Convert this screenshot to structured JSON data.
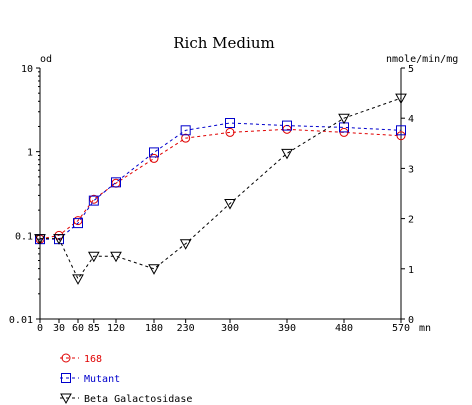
{
  "chart_data": {
    "type": "line",
    "title": "Rich Medium",
    "y_left_label": "od",
    "y_right_label": "nmole/min/mg",
    "x_unit_label": "mn",
    "x_ticks": [
      0,
      30,
      60,
      85,
      120,
      180,
      230,
      300,
      390,
      480,
      570
    ],
    "x_range": [
      0,
      570
    ],
    "y_left_scale": "log",
    "y_left_range": [
      0.01,
      10
    ],
    "y_left_ticks": [
      {
        "value": 10,
        "label": "10"
      },
      {
        "value": 1,
        "label": "1"
      },
      {
        "value": 0.1,
        "label": "0.1"
      },
      {
        "value": 0.01,
        "label": "0.01"
      }
    ],
    "y_right_range": [
      0,
      5
    ],
    "y_right_ticks": [
      0,
      1,
      2,
      3,
      4,
      5
    ],
    "grid": false,
    "legend_position": "bottom-left",
    "series": [
      {
        "name": "168",
        "axis": "left",
        "marker": "circle",
        "color": "#e00000",
        "x": [
          0,
          30,
          60,
          85,
          120,
          180,
          230,
          300,
          390,
          480,
          570
        ],
        "y": [
          0.09,
          0.1,
          0.15,
          0.27,
          0.42,
          0.83,
          1.45,
          1.7,
          1.85,
          1.7,
          1.55
        ]
      },
      {
        "name": "Mutant",
        "axis": "left",
        "marker": "square",
        "color": "#0000cc",
        "x": [
          0,
          30,
          60,
          85,
          120,
          180,
          230,
          300,
          390,
          480,
          570
        ],
        "y": [
          0.09,
          0.09,
          0.14,
          0.26,
          0.43,
          0.98,
          1.8,
          2.2,
          2.05,
          1.95,
          1.8
        ]
      },
      {
        "name": "Beta Galactosidase",
        "axis": "right",
        "marker": "triangle-down",
        "color": "#000000",
        "x": [
          0,
          30,
          60,
          85,
          120,
          180,
          230,
          300,
          390,
          480,
          570
        ],
        "y": [
          1.6,
          1.6,
          0.8,
          1.25,
          1.25,
          1.0,
          1.5,
          2.3,
          3.3,
          4.0,
          4.4
        ]
      }
    ]
  }
}
